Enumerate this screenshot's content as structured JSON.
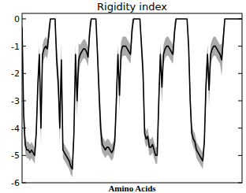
{
  "chart_data": {
    "type": "line",
    "title": "Rigidity index",
    "xlabel": "Amino Acids",
    "x": [
      1,
      2,
      3,
      4,
      5,
      6,
      7,
      8,
      9,
      10,
      11,
      12,
      13,
      14,
      15,
      16,
      17,
      18,
      19,
      20,
      21,
      22,
      23,
      24,
      25,
      26,
      27,
      28,
      29,
      30,
      31,
      32,
      33,
      34,
      35,
      36,
      37,
      38,
      39,
      40,
      41,
      42,
      43,
      44,
      45,
      46,
      47,
      48,
      49,
      50,
      51,
      52,
      53,
      54,
      55,
      56,
      57,
      58,
      59,
      60,
      61,
      62,
      63,
      64,
      65,
      66,
      67,
      68,
      69,
      70,
      71,
      72,
      73,
      74,
      75,
      76,
      77,
      78,
      79,
      80,
      81,
      82,
      83,
      84,
      85,
      86,
      87,
      88,
      89,
      90,
      91,
      92,
      93,
      94,
      95,
      96,
      97,
      98,
      99,
      100,
      101,
      102,
      103,
      104,
      105,
      106,
      107,
      108,
      109,
      110,
      111,
      112,
      113,
      114,
      115,
      116,
      117,
      118,
      119,
      120,
      121,
      122,
      123,
      124,
      125,
      126,
      127,
      128,
      129,
      130,
      131,
      132,
      133,
      134,
      135,
      136,
      137,
      138,
      139,
      140,
      141
    ],
    "series": [
      {
        "color": "#000000",
        "values": [
          -0.3,
          -3.5,
          -4.6,
          -4.8,
          -4.8,
          -4.9,
          -4.8,
          -4.9,
          -5.0,
          -4.2,
          -2.5,
          -1.3,
          -4.0,
          -1.3,
          -1.1,
          -1.0,
          -1.1,
          -0.6,
          0,
          0,
          0,
          0,
          -1.5,
          -2.3,
          -4.0,
          -1.5,
          -4.8,
          -4.9,
          -5.0,
          -5.1,
          -5.2,
          -5.4,
          -5.5,
          -4.2,
          -1.3,
          -3.0,
          -1.5,
          -1.3,
          -1.2,
          -1.1,
          -1.1,
          -1.2,
          -1.4,
          -0.5,
          0,
          0,
          0,
          0,
          -1.3,
          -2.7,
          -4.0,
          -4.6,
          -4.7,
          -4.8,
          -4.7,
          -4.7,
          -4.8,
          -4.9,
          -4.8,
          -4.5,
          -3.0,
          -1.3,
          -2.8,
          -1.2,
          -1.0,
          -1.0,
          -1.0,
          -1.1,
          -1.2,
          -1.3,
          -0.4,
          0,
          0,
          0,
          0,
          0,
          -1.0,
          -2.0,
          -4.2,
          -4.4,
          -4.3,
          -4.7,
          -4.7,
          -4.6,
          -4.8,
          -5.0,
          -5.0,
          -3.0,
          -1.3,
          -2.5,
          -1.3,
          -1.1,
          -1.0,
          -1.0,
          -1.1,
          -1.2,
          -1.3,
          -0.5,
          0,
          0,
          0,
          0,
          0,
          0,
          0,
          0,
          -1.0,
          -3.0,
          -4.2,
          -4.4,
          -4.5,
          -4.8,
          -4.9,
          -5.0,
          -5.1,
          -5.2,
          -4.5,
          -2.5,
          -1.3,
          -2.6,
          -1.3,
          -1.1,
          -1.0,
          -1.0,
          -1.1,
          -1.2,
          -1.3,
          -1.5,
          -0.8,
          0,
          0,
          0,
          0,
          0,
          0,
          0,
          0,
          0,
          0,
          0,
          0
        ],
        "error": [
          0.4,
          0.6,
          0.3,
          0.3,
          0.3,
          0.3,
          0.3,
          0.3,
          0.3,
          0.3,
          0.6,
          0.35,
          0.6,
          0.35,
          0.35,
          0.35,
          0.35,
          0.4,
          0,
          0,
          0,
          0,
          0.6,
          0.6,
          0.6,
          0.6,
          0.3,
          0.3,
          0.3,
          0.3,
          0.3,
          0.3,
          0.3,
          0.3,
          0.35,
          0.6,
          0.6,
          0.35,
          0.35,
          0.35,
          0.35,
          0.35,
          0.35,
          0.4,
          0,
          0,
          0,
          0,
          0.35,
          0.6,
          0.6,
          0.3,
          0.3,
          0.3,
          0.3,
          0.3,
          0.3,
          0.3,
          0.3,
          0.3,
          0.6,
          0.35,
          0.6,
          0.35,
          0.35,
          0.35,
          0.35,
          0.35,
          0.35,
          0.35,
          0.4,
          0,
          0,
          0,
          0,
          0,
          0.35,
          0.6,
          0.3,
          0.3,
          0.3,
          0.3,
          0.3,
          0.3,
          0.3,
          0.3,
          0.3,
          0.6,
          0.35,
          0.6,
          0.35,
          0.35,
          0.35,
          0.35,
          0.35,
          0.35,
          0.35,
          0.4,
          0,
          0,
          0,
          0,
          0,
          0,
          0,
          0,
          0.35,
          0.6,
          0.3,
          0.3,
          0.3,
          0.3,
          0.3,
          0.3,
          0.3,
          0.3,
          0.3,
          0.6,
          0.35,
          0.6,
          0.35,
          0.35,
          0.35,
          0.35,
          0.35,
          0.35,
          0.35,
          0.6,
          0.4,
          0,
          0,
          0,
          0,
          0,
          0,
          0,
          0,
          0,
          0,
          0,
          0
        ]
      }
    ],
    "xlim": [
      1,
      141
    ],
    "ylim": [
      -6,
      0.2
    ],
    "yticks": [
      0,
      -1,
      -2,
      -3,
      -4,
      -5,
      -6
    ],
    "tick_labels": "y",
    "grid": false
  }
}
